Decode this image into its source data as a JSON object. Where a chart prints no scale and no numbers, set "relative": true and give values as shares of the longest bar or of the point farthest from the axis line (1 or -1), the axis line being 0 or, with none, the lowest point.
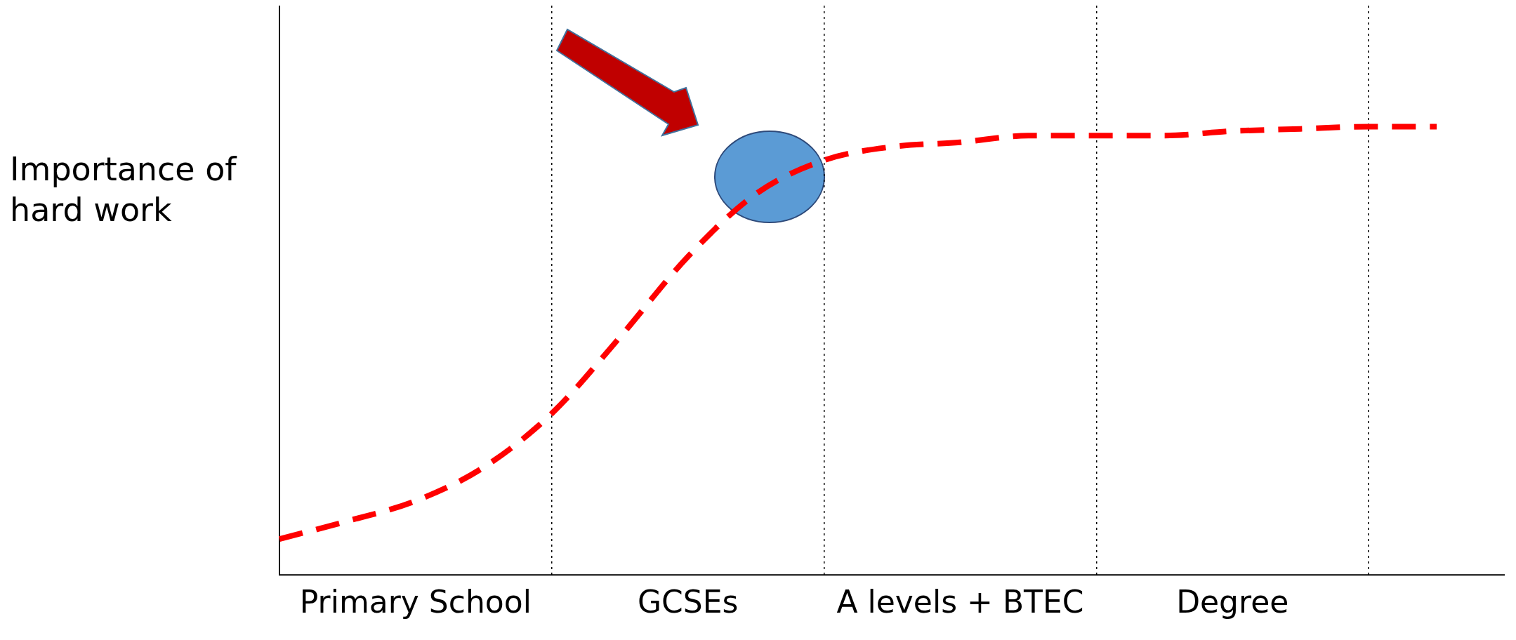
{
  "chart_data": {
    "type": "line",
    "ylabel": "Importance of hard work",
    "relative": true,
    "categories": [
      null,
      null,
      "Primary School",
      null,
      null,
      null,
      "GCSEs",
      null,
      null,
      null,
      "A levels + BTEC",
      null,
      null,
      null,
      "Degree",
      null,
      null,
      null,
      null
    ],
    "series": [
      {
        "color": "#ff0000",
        "line_style": "dashed",
        "values": [
          0.08,
          0.12,
          0.165,
          0.24,
          0.36,
          0.53,
          0.71,
          0.85,
          0.925,
          0.955,
          0.965,
          0.98,
          0.98,
          0.98,
          0.99,
          0.995,
          1.0,
          1.0,
          null
        ]
      }
    ],
    "marker": "none",
    "grid": "x",
    "legend": false
  }
}
